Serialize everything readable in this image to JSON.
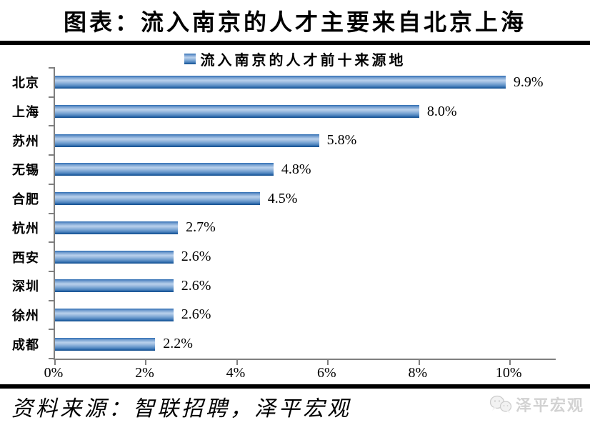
{
  "title": "图表：流入南京的人才主要来自北京上海",
  "legend": {
    "label": "流入南京的人才前十来源地",
    "swatch_color": "#2f6db5"
  },
  "chart_data": {
    "type": "bar",
    "orientation": "horizontal",
    "title": "流入南京的人才前十来源地",
    "categories": [
      "北京",
      "上海",
      "苏州",
      "无锡",
      "合肥",
      "杭州",
      "西安",
      "深圳",
      "徐州",
      "成都"
    ],
    "values": [
      9.9,
      8.0,
      5.8,
      4.8,
      4.5,
      2.7,
      2.6,
      2.6,
      2.6,
      2.2
    ],
    "value_labels": [
      "9.9%",
      "8.0%",
      "5.8%",
      "4.8%",
      "4.5%",
      "2.7%",
      "2.6%",
      "2.6%",
      "2.6%",
      "2.2%"
    ],
    "xlabel": "",
    "ylabel": "",
    "xlim": [
      0,
      11
    ],
    "x_ticks": [
      "0%",
      "2%",
      "4%",
      "6%",
      "8%",
      "10%"
    ],
    "x_tick_values": [
      0,
      2,
      4,
      6,
      8,
      10
    ],
    "grid": false,
    "legend_position": "top-center",
    "bar_color_dark": "#1d5c9e",
    "bar_color_light": "#b9d1ec",
    "axis_color": "#7f7f7f"
  },
  "footer": {
    "source": "资料来源：智联招聘，泽平宏观"
  },
  "watermark": {
    "label": "泽平宏观",
    "icon": "chat-bubbles-icon",
    "color": "#d2d2d2"
  }
}
